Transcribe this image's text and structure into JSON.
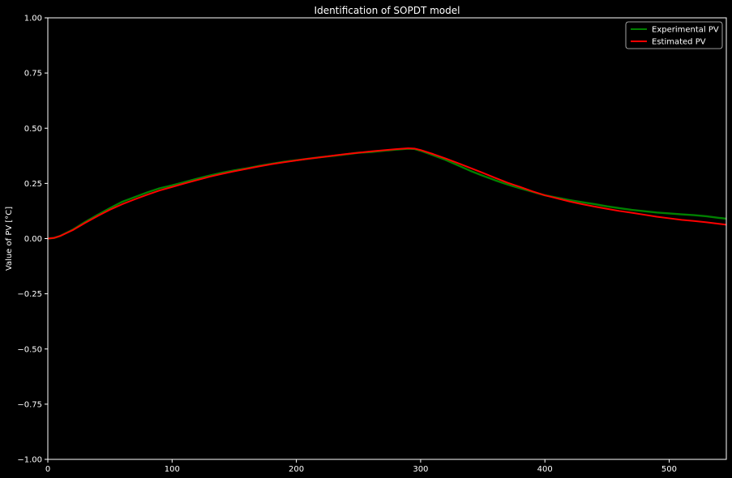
{
  "chart_data": {
    "type": "line",
    "title": "Identification of SOPDT model",
    "xlabel": "",
    "ylabel": "Value of PV [°C]",
    "xlim": [
      0,
      546
    ],
    "ylim": [
      -1.0,
      1.0
    ],
    "x_ticks": [
      0,
      100,
      200,
      300,
      400,
      500
    ],
    "x_tick_labels": [
      "0",
      "100",
      "200",
      "300",
      "400",
      "500"
    ],
    "y_ticks": [
      -1.0,
      -0.75,
      -0.5,
      -0.25,
      0.0,
      0.25,
      0.5,
      0.75,
      1.0
    ],
    "y_tick_labels": [
      "−1.00",
      "−0.75",
      "−0.50",
      "−0.25",
      "0.00",
      "0.25",
      "0.50",
      "0.75",
      "1.00"
    ],
    "grid": false,
    "legend_position": "top-right",
    "background": "#000000",
    "series": [
      {
        "name": "Experimental PV",
        "color": "#008000",
        "x": [
          0,
          5,
          10,
          20,
          30,
          40,
          50,
          60,
          70,
          80,
          90,
          100,
          110,
          120,
          130,
          140,
          150,
          160,
          170,
          180,
          190,
          200,
          210,
          220,
          230,
          240,
          250,
          260,
          270,
          280,
          290,
          295,
          300,
          310,
          320,
          330,
          340,
          350,
          360,
          370,
          380,
          390,
          400,
          410,
          420,
          430,
          440,
          450,
          460,
          470,
          480,
          490,
          500,
          510,
          520,
          530,
          540,
          546
        ],
        "y": [
          0.0,
          0.003,
          0.012,
          0.04,
          0.075,
          0.107,
          0.138,
          0.167,
          0.188,
          0.209,
          0.228,
          0.241,
          0.256,
          0.271,
          0.285,
          0.298,
          0.309,
          0.318,
          0.329,
          0.339,
          0.348,
          0.355,
          0.362,
          0.369,
          0.375,
          0.382,
          0.389,
          0.392,
          0.398,
          0.403,
          0.407,
          0.406,
          0.398,
          0.378,
          0.357,
          0.332,
          0.307,
          0.285,
          0.264,
          0.245,
          0.228,
          0.212,
          0.196,
          0.185,
          0.174,
          0.165,
          0.156,
          0.146,
          0.138,
          0.13,
          0.124,
          0.118,
          0.114,
          0.11,
          0.106,
          0.101,
          0.094,
          0.09
        ]
      },
      {
        "name": "Estimated PV",
        "color": "#ff0000",
        "x": [
          0,
          5,
          10,
          20,
          30,
          40,
          50,
          60,
          70,
          80,
          90,
          100,
          110,
          120,
          130,
          140,
          150,
          160,
          170,
          180,
          190,
          200,
          210,
          220,
          230,
          240,
          250,
          260,
          270,
          280,
          290,
          295,
          300,
          310,
          320,
          330,
          340,
          350,
          360,
          370,
          380,
          390,
          400,
          410,
          420,
          430,
          440,
          450,
          460,
          470,
          480,
          490,
          500,
          510,
          520,
          530,
          540,
          546
        ],
        "y": [
          0.0,
          0.003,
          0.012,
          0.038,
          0.071,
          0.102,
          0.131,
          0.156,
          0.178,
          0.199,
          0.218,
          0.234,
          0.25,
          0.265,
          0.28,
          0.293,
          0.305,
          0.316,
          0.327,
          0.337,
          0.346,
          0.354,
          0.362,
          0.369,
          0.376,
          0.383,
          0.389,
          0.395,
          0.4,
          0.405,
          0.409,
          0.408,
          0.401,
          0.383,
          0.363,
          0.342,
          0.32,
          0.298,
          0.275,
          0.253,
          0.234,
          0.214,
          0.196,
          0.182,
          0.168,
          0.156,
          0.145,
          0.135,
          0.125,
          0.117,
          0.108,
          0.099,
          0.092,
          0.085,
          0.08,
          0.074,
          0.067,
          0.063
        ]
      }
    ]
  }
}
